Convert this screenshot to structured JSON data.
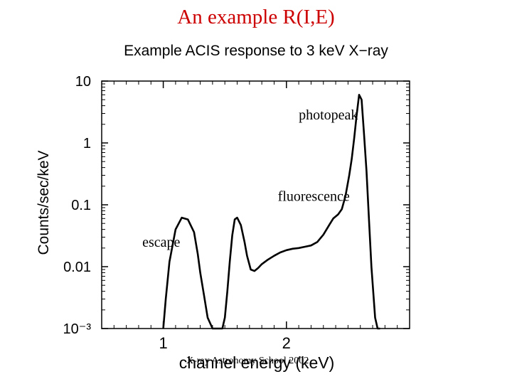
{
  "slide": {
    "title": "An example R(I,E)",
    "footer": "X-ray Astronomy School 2002"
  },
  "chart_data": {
    "type": "line",
    "title": "Example ACIS response to 3 keV X−ray",
    "xlabel": "channel energy (keV)",
    "ylabel": "Counts/sec/keV",
    "x_scale": "linear",
    "y_scale": "log",
    "xlim": [
      0.5,
      3.0
    ],
    "ylim": [
      0.001,
      10
    ],
    "x_ticks": [
      {
        "value": 1,
        "label": "1"
      },
      {
        "value": 2,
        "label": "2"
      }
    ],
    "y_ticks": [
      {
        "value": 10,
        "label": "10"
      },
      {
        "value": 1,
        "label": "1"
      },
      {
        "value": 0.1,
        "label": "0.1"
      },
      {
        "value": 0.01,
        "label": "0.01"
      },
      {
        "value": 0.001,
        "label": "10⁻³"
      }
    ],
    "grid": false,
    "series": [
      {
        "x": [
          1.0,
          1.02,
          1.05,
          1.1,
          1.15,
          1.2,
          1.25,
          1.28,
          1.3,
          1.33,
          1.36,
          1.4,
          1.44,
          1.48,
          1.5,
          1.52,
          1.54,
          1.56,
          1.58,
          1.6,
          1.63,
          1.66,
          1.68,
          1.71,
          1.74,
          1.77,
          1.8,
          1.85,
          1.9,
          1.95,
          2.0,
          2.05,
          2.1,
          2.15,
          2.2,
          2.25,
          2.3,
          2.35,
          2.38,
          2.42,
          2.45,
          2.48,
          2.51,
          2.53,
          2.55,
          2.57,
          2.59,
          2.61,
          2.63,
          2.65,
          2.67,
          2.69,
          2.72,
          2.74,
          2.76
        ],
        "y": [
          0.001,
          0.003,
          0.012,
          0.04,
          0.062,
          0.058,
          0.036,
          0.016,
          0.008,
          0.0035,
          0.0015,
          0.001,
          0.001,
          0.001,
          0.0015,
          0.004,
          0.012,
          0.032,
          0.058,
          0.062,
          0.047,
          0.025,
          0.015,
          0.009,
          0.0085,
          0.0095,
          0.011,
          0.013,
          0.015,
          0.017,
          0.0185,
          0.0195,
          0.02,
          0.021,
          0.022,
          0.025,
          0.033,
          0.048,
          0.06,
          0.07,
          0.085,
          0.14,
          0.3,
          0.55,
          1.2,
          2.8,
          6.0,
          5.0,
          1.4,
          0.35,
          0.06,
          0.01,
          0.0015,
          0.001,
          0.001
        ]
      }
    ],
    "annotations": [
      {
        "text": "photopeak",
        "x": 2.1,
        "y": 2.4
      },
      {
        "text": "fluorescence",
        "x": 1.93,
        "y": 0.115
      },
      {
        "text": "escape",
        "x": 0.83,
        "y": 0.021
      }
    ]
  }
}
